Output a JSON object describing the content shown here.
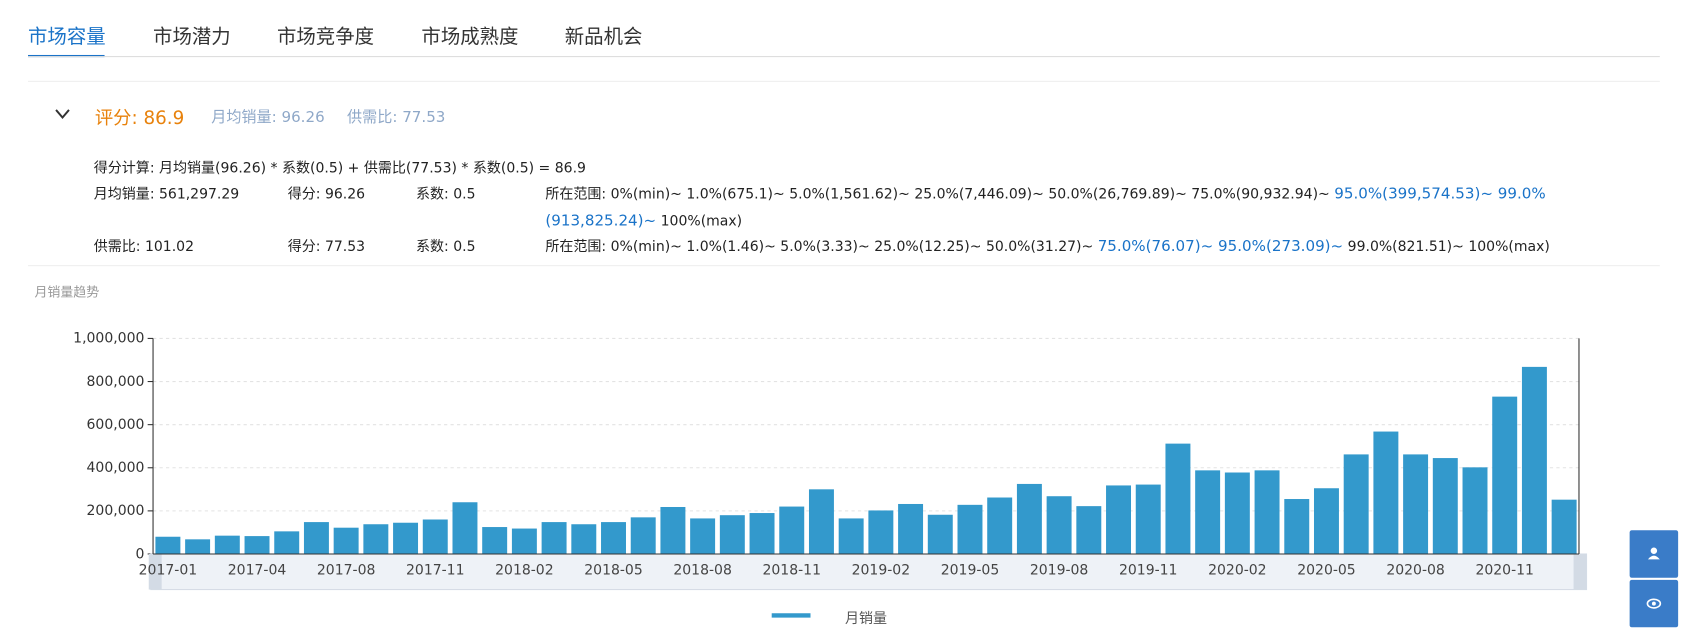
{
  "tabs": [
    "市场容量",
    "市场潜力",
    "市场竞争度",
    "市场成熟度",
    "新品机会"
  ],
  "active_tab": 0,
  "score": {
    "title": "评分: 86.9",
    "sales": "月均销量: 96.26",
    "ratio": "供需比: 77.53"
  },
  "formula": "得分计算: 月均销量(96.26) * 系数(0.5) + 供需比(77.53) * 系数(0.5) = 86.9",
  "rows": [
    {
      "name": "月均销量: 561,297.29",
      "score": "得分: 96.26",
      "coef": "系数: 0.5",
      "range": [
        {
          "text": "所在范围: 0%(min)~ 1.0%(675.1)~ 5.0%(1,561.62)~ 25.0%(7,446.09)~ 50.0%(26,769.89)~ 75.0%(90,932.94)~ ",
          "highlight": false
        },
        {
          "text": "95.0%(399,574.53)~ 99.0%(913,825.24)~",
          "highlight": true
        },
        {
          "text": " 100%(max)",
          "highlight": false
        }
      ]
    },
    {
      "name": "供需比: 101.02",
      "score": "得分: 77.53",
      "coef": "系数: 0.5",
      "range": [
        {
          "text": "所在范围: 0%(min)~ 1.0%(1.46)~ 5.0%(3.33)~ 25.0%(12.25)~ 50.0%(31.27)~ ",
          "highlight": false
        },
        {
          "text": "75.0%(76.07)~ 95.0%(273.09)~",
          "highlight": true
        },
        {
          "text": " 99.0%(821.51)~ 100%(max)",
          "highlight": false
        }
      ]
    }
  ],
  "chart_data": {
    "type": "bar",
    "title": "月销量趋势",
    "categories": [
      "2017-01",
      null,
      null,
      "2017-04",
      null,
      null,
      "2017-08",
      null,
      null,
      "2017-11",
      null,
      null,
      "2018-02",
      null,
      null,
      "2018-05",
      null,
      null,
      "2018-08",
      null,
      null,
      "2018-11",
      null,
      null,
      "2019-02",
      null,
      null,
      "2019-05",
      null,
      null,
      "2019-08",
      null,
      null,
      "2019-11",
      null,
      null,
      "2020-02",
      null,
      null,
      "2020-05",
      null,
      null,
      "2020-08",
      null,
      null,
      "2020-11",
      null,
      null
    ],
    "series": [
      {
        "name": "月销量",
        "color": "#3399cc",
        "values": [
          80000,
          68000,
          85000,
          83000,
          105000,
          148000,
          122000,
          138000,
          145000,
          160000,
          240000,
          125000,
          118000,
          148000,
          138000,
          148000,
          170000,
          218000,
          165000,
          180000,
          190000,
          220000,
          300000,
          165000,
          202000,
          232000,
          182000,
          228000,
          262000,
          325000,
          268000,
          222000,
          318000,
          322000,
          512000,
          388000,
          378000,
          388000,
          255000,
          305000,
          462000,
          568000,
          462000,
          445000,
          402000,
          730000,
          868000,
          252000
        ]
      }
    ],
    "ylim": [
      0,
      1000000
    ],
    "yticks": [
      0,
      {
        "value": 200000,
        "label": "200,000"
      },
      {
        "value": 400000,
        "label": "400,000"
      },
      {
        "value": 600000,
        "label": "600,000"
      },
      {
        "value": 800000,
        "label": "800,000"
      },
      {
        "value": 1000000,
        "label": "1,000,000"
      }
    ],
    "grid": true
  }
}
